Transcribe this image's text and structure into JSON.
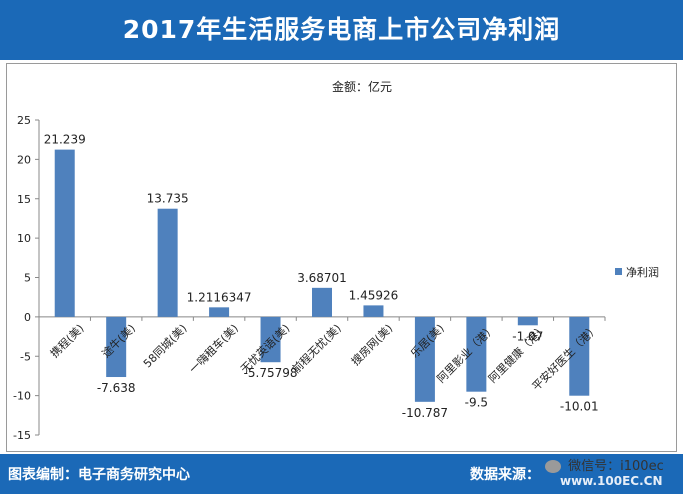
{
  "header": {
    "title": "2017年生活服务电商上市公司净利润"
  },
  "footer": {
    "left_text": "图表编制：电子商务研究中心",
    "right_text": "数据来源：",
    "wechat_text": "微信号：i100ec",
    "watermark": "www.100EC.CN"
  },
  "colors": {
    "bar": "#4f81bd",
    "header_bg": "#1b69b7"
  },
  "chart_data": {
    "type": "bar",
    "title": "金额：亿元",
    "xlabel": "",
    "ylabel": "",
    "ylim": [
      -15,
      25
    ],
    "yticks": [
      25,
      20,
      15,
      10,
      5,
      0,
      -5,
      -10,
      -15
    ],
    "categories": [
      "携程(美)",
      "途牛(美)",
      "58同城(美)",
      "一嗨租车(美)",
      "无忧英语(美)",
      "前程无忧(美)",
      "搜房网(美)",
      "乐居(美)",
      "阿里影业（港）",
      "阿里健康（港）",
      "平安好医生（港）"
    ],
    "series": [
      {
        "name": "净利润",
        "values": [
          21.239,
          -7.638,
          13.735,
          1.2116347,
          -5.75798,
          3.68701,
          1.45926,
          -10.787,
          -9.5,
          -1.07,
          -10.01
        ]
      }
    ],
    "value_labels": [
      "21.239",
      "-7.638",
      "13.735",
      "1.2116347",
      "-5.75798",
      "3.68701",
      "1.45926",
      "-10.787",
      "-9.5",
      "-1.07",
      "-10.01"
    ],
    "legend": {
      "position": "right",
      "label": "净利润"
    }
  }
}
